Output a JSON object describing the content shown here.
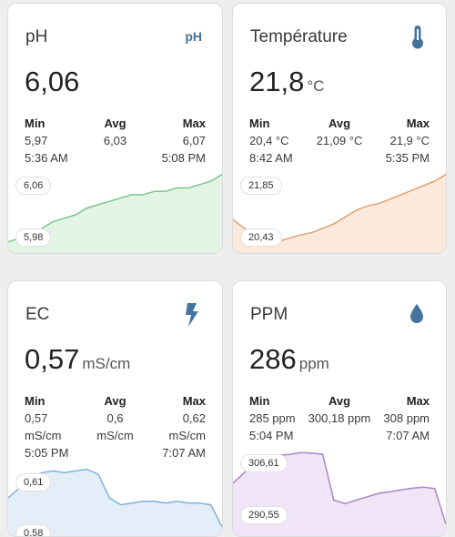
{
  "cards": [
    {
      "title": "pH",
      "icon": "ph-icon",
      "icon_text": "pH",
      "value": "6,06",
      "unit": "",
      "min_label": "Min",
      "avg_label": "Avg",
      "max_label": "Max",
      "min_value": "5,97",
      "avg_value": "6,03",
      "max_value": "6,07",
      "min_time": "5:36 AM",
      "max_time": "5:08 PM",
      "chart_top_label": "6,06",
      "chart_bottom_label": "5,98",
      "color_line": "#7cc88a",
      "color_fill": "#e3f4e5",
      "series": [
        5.97,
        5.975,
        5.98,
        5.99,
        6.0,
        6.005,
        6.01,
        6.02,
        6.025,
        6.03,
        6.035,
        6.04,
        6.04,
        6.045,
        6.045,
        6.05,
        6.05,
        6.055,
        6.06,
        6.07
      ]
    },
    {
      "title": "Température",
      "icon": "thermometer-icon",
      "value": "21,8",
      "unit": "°C",
      "min_label": "Min",
      "avg_label": "Avg",
      "max_label": "Max",
      "min_value": "20,4 °C",
      "avg_value": "21,09 °C",
      "max_value": "21,9 °C",
      "min_time": "8:42 AM",
      "max_time": "5:35 PM",
      "chart_top_label": "21,85",
      "chart_bottom_label": "20,43",
      "color_line": "#e4a06e",
      "color_fill": "#fbe9dc",
      "series": [
        20.9,
        20.7,
        20.55,
        20.45,
        20.4,
        20.48,
        20.55,
        20.6,
        20.7,
        20.8,
        20.95,
        21.1,
        21.2,
        21.25,
        21.35,
        21.45,
        21.55,
        21.65,
        21.75,
        21.9
      ]
    },
    {
      "title": "EC",
      "icon": "lightning-icon",
      "value": "0,57",
      "unit": "mS/cm",
      "min_label": "Min",
      "avg_label": "Avg",
      "max_label": "Max",
      "min_value": "0,57",
      "avg_value": "0,6",
      "max_value": "0,62",
      "min_unit": "mS/cm",
      "avg_unit": "mS/cm",
      "max_unit": "mS/cm",
      "min_time": "5:05 PM",
      "max_time": "7:07 AM",
      "chart_top_label": "0,61",
      "chart_bottom_label": "0,58",
      "color_line": "#7fb0dc",
      "color_fill": "#e3eef8",
      "series": [
        0.592,
        0.598,
        0.604,
        0.607,
        0.608,
        0.607,
        0.608,
        0.609,
        0.606,
        0.592,
        0.588,
        0.589,
        0.59,
        0.59,
        0.589,
        0.59,
        0.589,
        0.589,
        0.588,
        0.575
      ]
    },
    {
      "title": "PPM",
      "icon": "water-drop-icon",
      "value": "286",
      "unit": "ppm",
      "min_label": "Min",
      "avg_label": "Avg",
      "max_label": "Max",
      "min_value": "285 ppm",
      "avg_value": "300,18 ppm",
      "max_value": "308 ppm",
      "min_time": "5:04 PM",
      "max_time": "7:07 AM",
      "chart_top_label": "306,61",
      "chart_bottom_label": "290,55",
      "color_line": "#a885c8",
      "color_fill": "#efe5f6",
      "series": [
        298,
        301,
        304,
        306,
        306.2,
        306.4,
        307,
        306.8,
        306.5,
        293,
        292,
        293,
        294,
        295,
        295.5,
        296,
        296.5,
        296.8,
        296.4,
        286
      ]
    }
  ]
}
